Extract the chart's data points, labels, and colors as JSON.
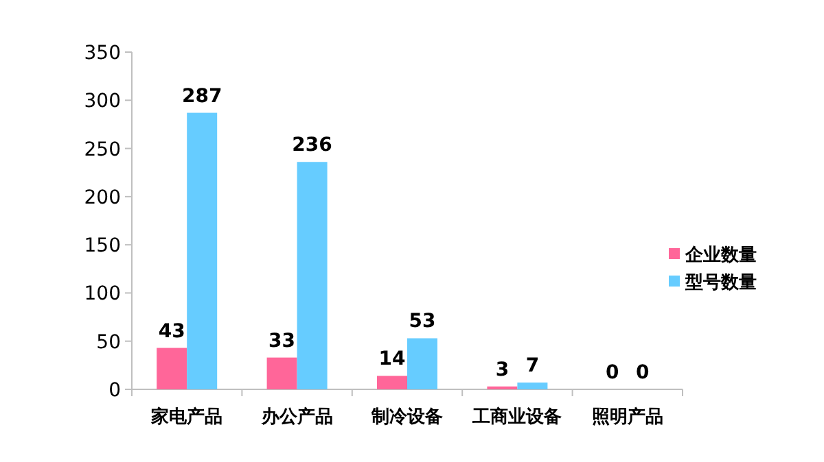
{
  "chart_data": {
    "type": "bar",
    "categories": [
      "家电产品",
      "办公产品",
      "制冷设备",
      "工商业设备",
      "照明产品"
    ],
    "series": [
      {
        "name": "企业数量",
        "color": "#ff6699",
        "values": [
          43,
          33,
          14,
          3,
          0
        ]
      },
      {
        "name": "型号数量",
        "color": "#66ccff",
        "values": [
          287,
          236,
          53,
          7,
          0
        ]
      }
    ],
    "ylim": [
      0,
      350
    ],
    "yticks": [
      0,
      50,
      100,
      150,
      200,
      250,
      300,
      350
    ],
    "grid": false,
    "legend": "right",
    "data_labels": true
  }
}
